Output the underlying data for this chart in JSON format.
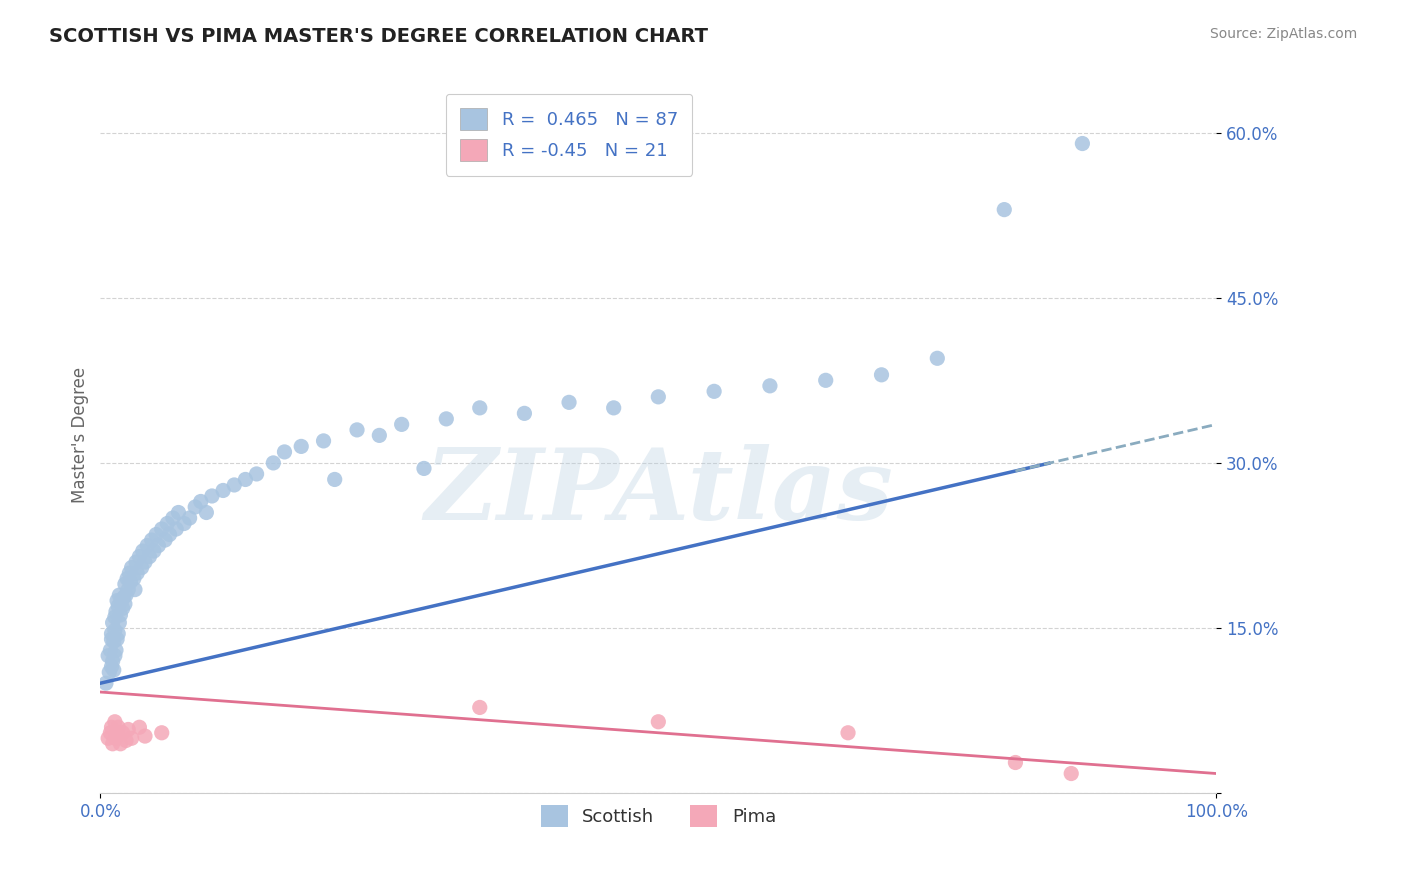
{
  "title": "SCOTTISH VS PIMA MASTER'S DEGREE CORRELATION CHART",
  "source": "Source: ZipAtlas.com",
  "ylabel": "Master's Degree",
  "xlim": [
    0.0,
    1.0
  ],
  "ylim": [
    0.0,
    0.65
  ],
  "yticks": [
    0.0,
    0.15,
    0.3,
    0.45,
    0.6
  ],
  "ytick_labels": [
    "",
    "15.0%",
    "30.0%",
    "45.0%",
    "60.0%"
  ],
  "xticks": [
    0.0,
    1.0
  ],
  "xtick_labels": [
    "0.0%",
    "100.0%"
  ],
  "scottish_color": "#a8c4e0",
  "pima_color": "#f4a8b8",
  "trend_scottish_color": "#4472c4",
  "trend_pima_color": "#e07090",
  "R_scottish": 0.465,
  "N_scottish": 87,
  "R_pima": -0.45,
  "N_pima": 21,
  "background_color": "#ffffff",
  "grid_color": "#c8c8c8",
  "tick_label_color": "#4472c4",
  "title_color": "#222222",
  "watermark": "ZIPAtlas",
  "trend_s_x0": 0.0,
  "trend_s_y0": 0.1,
  "trend_s_x1": 1.0,
  "trend_s_y1": 0.335,
  "trend_p_x0": 0.0,
  "trend_p_y0": 0.092,
  "trend_p_x1": 1.0,
  "trend_p_y1": 0.018,
  "scottish_x": [
    0.005,
    0.007,
    0.008,
    0.009,
    0.01,
    0.01,
    0.01,
    0.011,
    0.011,
    0.012,
    0.012,
    0.013,
    0.013,
    0.013,
    0.014,
    0.014,
    0.015,
    0.015,
    0.016,
    0.016,
    0.017,
    0.017,
    0.018,
    0.019,
    0.02,
    0.021,
    0.022,
    0.022,
    0.023,
    0.024,
    0.025,
    0.026,
    0.027,
    0.028,
    0.03,
    0.031,
    0.032,
    0.033,
    0.035,
    0.037,
    0.038,
    0.04,
    0.042,
    0.044,
    0.046,
    0.048,
    0.05,
    0.052,
    0.055,
    0.058,
    0.06,
    0.062,
    0.065,
    0.068,
    0.07,
    0.075,
    0.08,
    0.085,
    0.09,
    0.095,
    0.1,
    0.11,
    0.12,
    0.13,
    0.14,
    0.155,
    0.165,
    0.18,
    0.2,
    0.21,
    0.23,
    0.25,
    0.27,
    0.29,
    0.31,
    0.34,
    0.38,
    0.42,
    0.46,
    0.5,
    0.55,
    0.6,
    0.65,
    0.7,
    0.75,
    0.81,
    0.88
  ],
  "scottish_y": [
    0.1,
    0.125,
    0.11,
    0.13,
    0.115,
    0.14,
    0.145,
    0.12,
    0.155,
    0.112,
    0.138,
    0.125,
    0.148,
    0.16,
    0.13,
    0.165,
    0.14,
    0.175,
    0.145,
    0.17,
    0.155,
    0.18,
    0.162,
    0.175,
    0.168,
    0.178,
    0.172,
    0.19,
    0.18,
    0.195,
    0.185,
    0.2,
    0.192,
    0.205,
    0.195,
    0.185,
    0.21,
    0.2,
    0.215,
    0.205,
    0.22,
    0.21,
    0.225,
    0.215,
    0.23,
    0.22,
    0.235,
    0.225,
    0.24,
    0.23,
    0.245,
    0.235,
    0.25,
    0.24,
    0.255,
    0.245,
    0.25,
    0.26,
    0.265,
    0.255,
    0.27,
    0.275,
    0.28,
    0.285,
    0.29,
    0.3,
    0.31,
    0.315,
    0.32,
    0.285,
    0.33,
    0.325,
    0.335,
    0.295,
    0.34,
    0.35,
    0.345,
    0.355,
    0.35,
    0.36,
    0.365,
    0.37,
    0.375,
    0.38,
    0.395,
    0.53,
    0.59
  ],
  "pima_x": [
    0.007,
    0.009,
    0.01,
    0.011,
    0.013,
    0.014,
    0.015,
    0.016,
    0.018,
    0.02,
    0.023,
    0.025,
    0.028,
    0.035,
    0.04,
    0.055,
    0.34,
    0.5,
    0.67,
    0.82,
    0.87
  ],
  "pima_y": [
    0.05,
    0.055,
    0.06,
    0.045,
    0.065,
    0.05,
    0.055,
    0.06,
    0.045,
    0.055,
    0.048,
    0.058,
    0.05,
    0.06,
    0.052,
    0.055,
    0.078,
    0.065,
    0.055,
    0.028,
    0.018
  ]
}
